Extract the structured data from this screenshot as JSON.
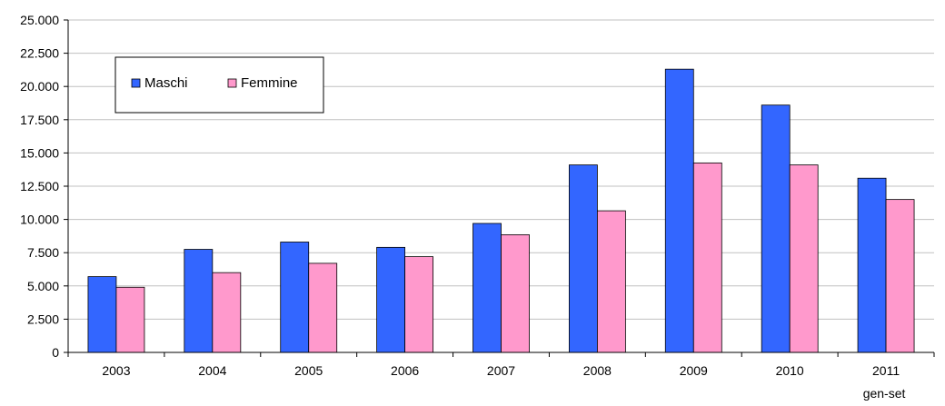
{
  "colors": {
    "Maschi": "#3366ff",
    "Femmine": "#ff99cc"
  },
  "chart_data": {
    "type": "bar",
    "title": "",
    "xlabel": "",
    "ylabel": "",
    "ylim": [
      0,
      25000
    ],
    "yticks": [
      "0",
      "2.500",
      "5.000",
      "7.500",
      "10.000",
      "12.500",
      "15.000",
      "17.500",
      "20.000",
      "22.500",
      "25.000"
    ],
    "ytick_values": [
      0,
      2500,
      5000,
      7500,
      10000,
      12500,
      15000,
      17500,
      20000,
      22500,
      25000
    ],
    "categories": [
      "2003",
      "2004",
      "2005",
      "2006",
      "2007",
      "2008",
      "2009",
      "2010",
      "2011"
    ],
    "category_sublabels": [
      "",
      "",
      "",
      "",
      "",
      "",
      "",
      "",
      "gen-set"
    ],
    "grid": true,
    "legend_position": "top-left",
    "series": [
      {
        "name": "Maschi",
        "values": [
          5700,
          7750,
          8300,
          7900,
          9700,
          14100,
          21300,
          18600,
          13100
        ]
      },
      {
        "name": "Femmine",
        "values": [
          4900,
          6000,
          6700,
          7200,
          8850,
          10650,
          14250,
          14100,
          11500
        ]
      }
    ]
  }
}
